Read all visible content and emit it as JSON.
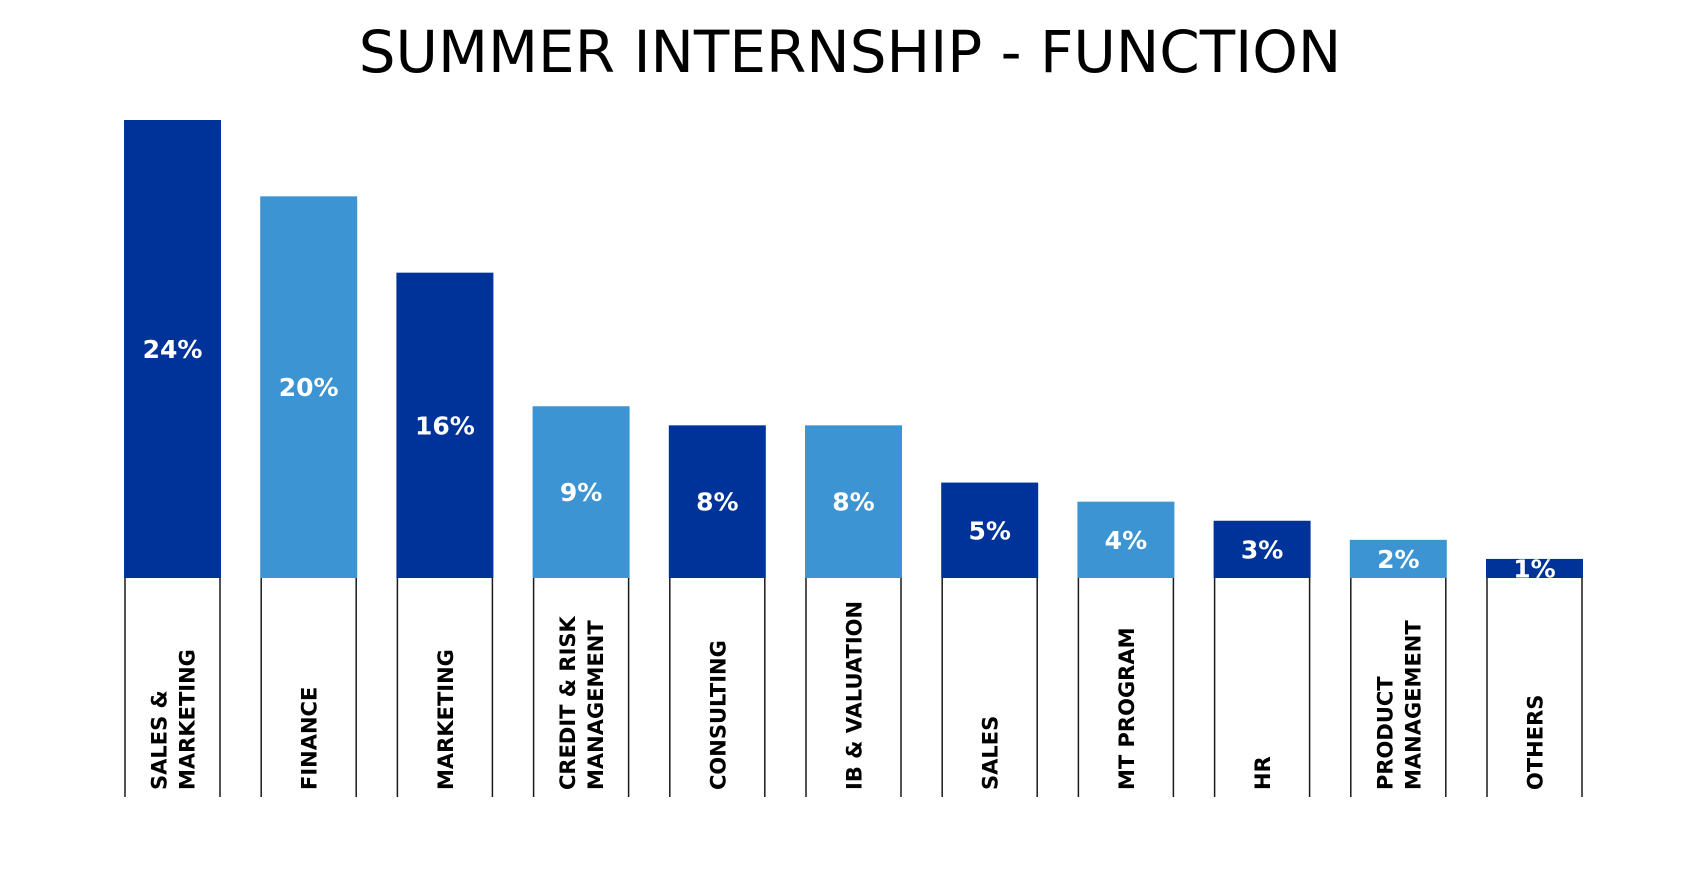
{
  "chart_data": {
    "type": "bar",
    "title": "SUMMER INTERNSHIP - FUNCTION",
    "categories": [
      [
        "SALES &",
        "MARKETING"
      ],
      [
        "FINANCE"
      ],
      [
        "MARKETING"
      ],
      [
        "CREDIT & RISK",
        "MANAGEMENT"
      ],
      [
        "CONSULTING"
      ],
      [
        "IB & VALUATION"
      ],
      [
        "SALES"
      ],
      [
        "MT PROGRAM"
      ],
      [
        "HR"
      ],
      [
        "PRODUCT",
        "MANAGEMENT"
      ],
      [
        "OTHERS"
      ]
    ],
    "values": [
      24,
      20,
      16,
      9,
      8,
      8,
      5,
      4,
      3,
      2,
      1
    ],
    "value_labels": [
      "24%",
      "20%",
      "16%",
      "9%",
      "8%",
      "8%",
      "5%",
      "4%",
      "3%",
      "2%",
      "1%"
    ],
    "ylim": [
      0,
      24
    ],
    "colors": {
      "dark": "#003399",
      "light": "#3d94d3"
    },
    "bar_color_pattern": [
      "dark",
      "light"
    ],
    "grid": false,
    "legend": "none"
  }
}
